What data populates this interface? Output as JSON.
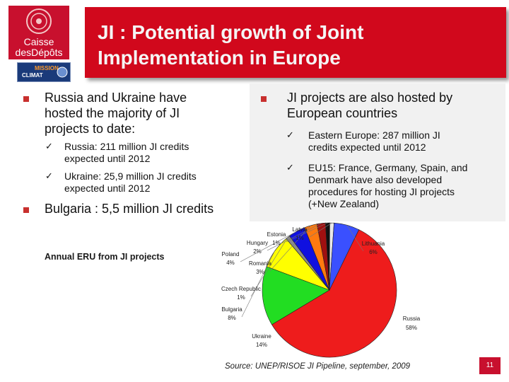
{
  "logo": {
    "line1": "Caisse",
    "line2": "desDépôts",
    "mission_line1": "MISSION",
    "mission_line2": "CLIMAT",
    "brand_color": "#c8102e"
  },
  "title": {
    "line1": "JI : Potential growth of Joint",
    "line2": "Implementation in Europe",
    "bar_color": "#d1081c"
  },
  "left": {
    "bullet1": {
      "line1": "Russia and Ukraine have",
      "line2": "hosted the majority of JI",
      "line3": "projects to date:"
    },
    "sub1": {
      "line1": "Russia: 211 million JI credits",
      "line2": "expected until 2012"
    },
    "sub2": {
      "line1": "Ukraine: 25,9 million JI credits",
      "line2": "expected until 2012"
    },
    "bullet2": "Bulgaria : 5,5 million JI credits"
  },
  "right": {
    "bullet1": {
      "line1": "JI projects are also hosted by",
      "line2": "European countries"
    },
    "sub1": {
      "line1": "Eastern Europe: 287 million JI",
      "line2": "credits expected until 2012"
    },
    "sub2": {
      "line1": "EU15: France, Germany, Spain, and",
      "line2": "Denmark have also developed",
      "line3": "procedures for hosting JI projects",
      "line4": "(+New Zealand)"
    }
  },
  "check_glyph": "✓",
  "chart_label": "Annual ERU from JI projects",
  "chart_data": {
    "type": "pie",
    "title": "Annual ERU from JI projects",
    "slices": [
      {
        "label": "Russia",
        "pct_label": "58%",
        "value": 58,
        "color": "#ee1c1c"
      },
      {
        "label": "Ukraine",
        "pct_label": "14%",
        "value": 14,
        "color": "#22dd22"
      },
      {
        "label": "Bulgaria",
        "pct_label": "8%",
        "value": 8,
        "color": "#ffff00"
      },
      {
        "label": "Czech Republic",
        "pct_label": "1%",
        "value": 1,
        "color": "#8a8a8a"
      },
      {
        "label": "Poland",
        "pct_label": "4%",
        "value": 4,
        "color": "#1010e0"
      },
      {
        "label": "Romania",
        "pct_label": "3%",
        "value": 3,
        "color": "#ff7a10"
      },
      {
        "label": "Hungary",
        "pct_label": "2%",
        "value": 2,
        "color": "#a01010"
      },
      {
        "label": "Estonia",
        "pct_label": "1%",
        "value": 1,
        "color": "#111111"
      },
      {
        "label": "Latvia",
        "pct_label": "1%",
        "value": 1,
        "color": "#e8e8e8"
      },
      {
        "label": "Lithuania",
        "pct_label": "6%",
        "value": 6,
        "color": "#3a50ff"
      }
    ]
  },
  "source": "Source: UNEP/RISOE JI Pipeline, september, 2009",
  "page_number": "11"
}
